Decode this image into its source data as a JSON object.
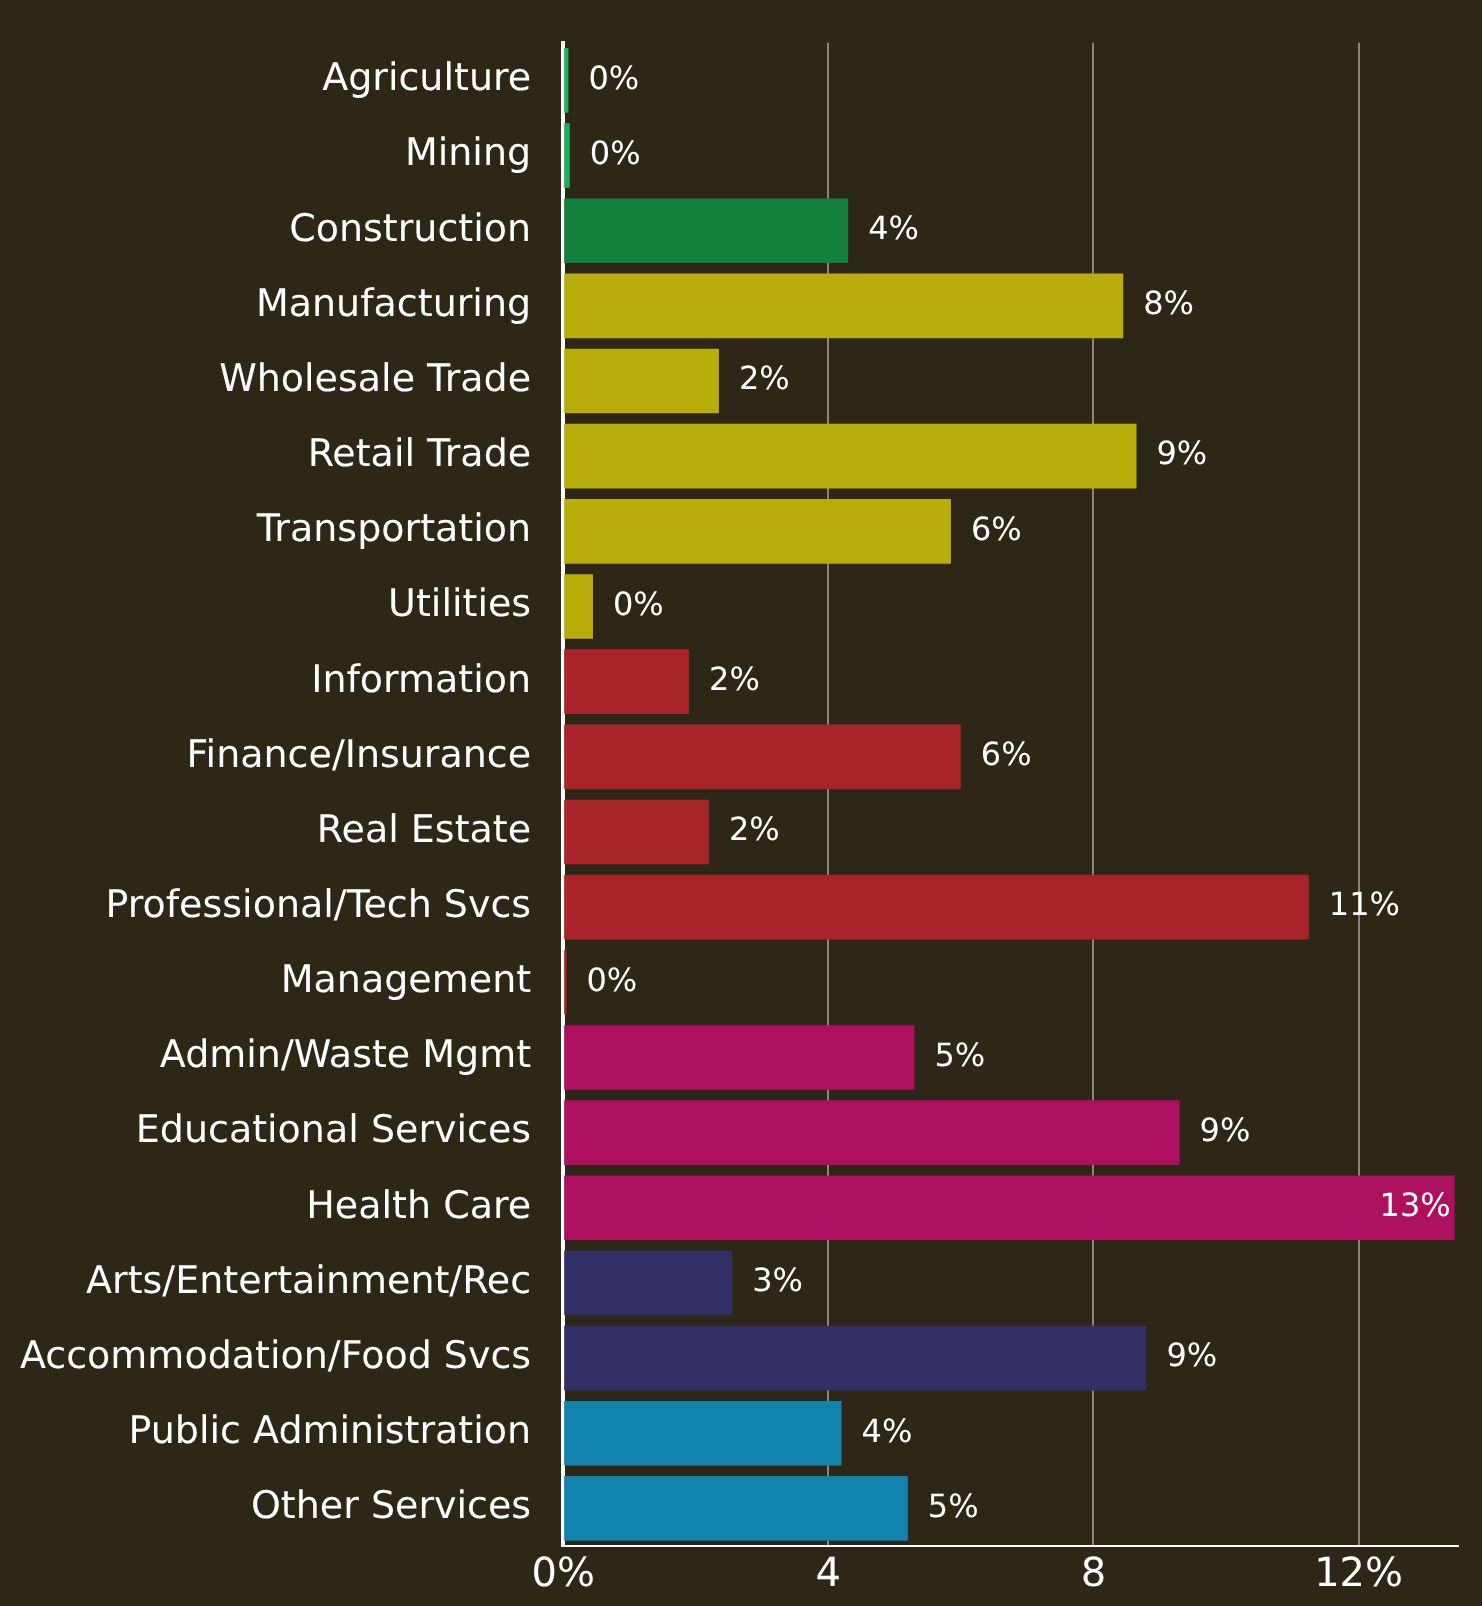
{
  "chart_data": {
    "type": "bar",
    "orientation": "horizontal",
    "categories": [
      "Agriculture",
      "Mining",
      "Construction",
      "Manufacturing",
      "Wholesale Trade",
      "Retail Trade",
      "Transportation",
      "Utilities",
      "Information",
      "Finance/Insurance",
      "Real Estate",
      "Professional/Tech Svcs",
      "Management",
      "Admin/Waste Mgmt",
      "Educational Services",
      "Health Care",
      "Arts/Entertainment/Rec",
      "Accommodation/Food Svcs",
      "Public Administration",
      "Other Services"
    ],
    "values": [
      0.08,
      0.1,
      4.3,
      8.45,
      2.35,
      8.65,
      5.85,
      0.45,
      1.9,
      6.0,
      2.2,
      11.25,
      0.05,
      5.3,
      9.3,
      13.45,
      2.55,
      8.8,
      4.2,
      5.2
    ],
    "colors": [
      "#1fae5a",
      "#1fae5a",
      "#13803e",
      "#b9ad0b",
      "#b9ad0b",
      "#b9ad0b",
      "#b9ad0b",
      "#b9ad0b",
      "#a82428",
      "#a82428",
      "#a82428",
      "#a82428",
      "#a82428",
      "#ae1060",
      "#ae1060",
      "#ae1060",
      "#322f67",
      "#322f67",
      "#1283ad",
      "#1283ad"
    ],
    "value_labels": [
      "0%",
      "0%",
      "4%",
      "8%",
      "2%",
      "9%",
      "6%",
      "0%",
      "2%",
      "6%",
      "2%",
      "11%",
      "0%",
      "5%",
      "9%",
      "13%",
      "3%",
      "9%",
      "4%",
      "5%"
    ],
    "xlim": [
      0,
      13.5
    ],
    "xticks": [
      {
        "value": 0,
        "label": "0%"
      },
      4,
      8,
      {
        "value": 12,
        "label": "12%"
      }
    ],
    "grid": "x",
    "legend": false
  }
}
